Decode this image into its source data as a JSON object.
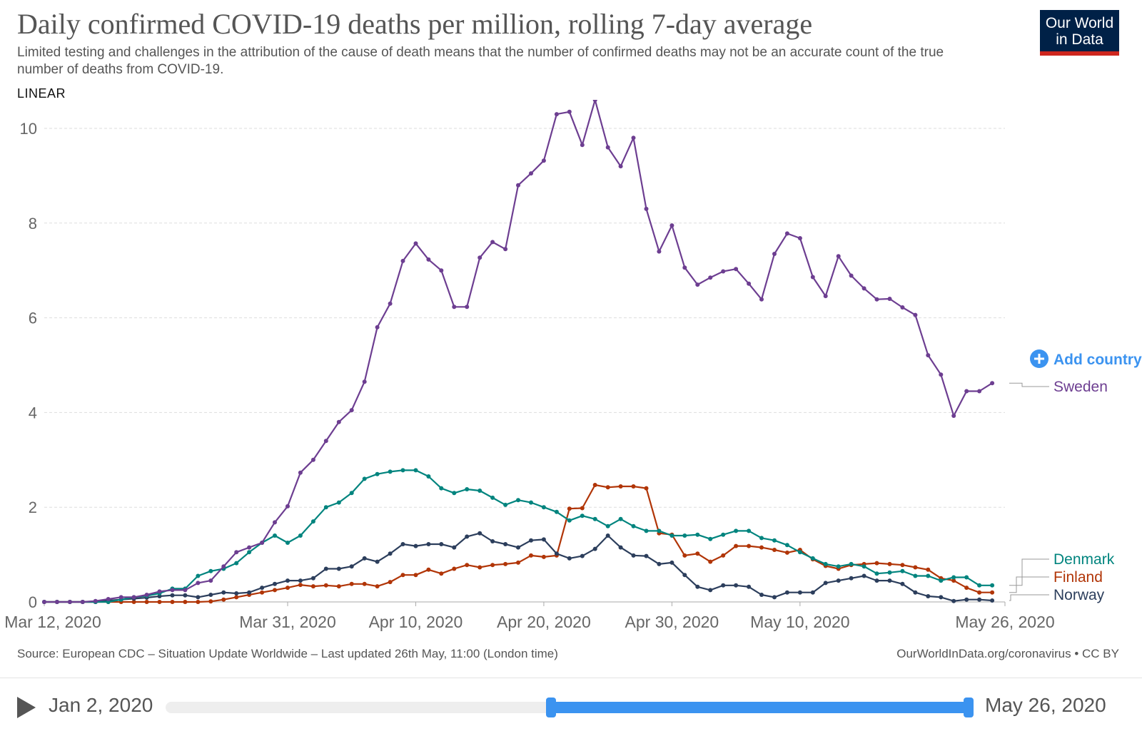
{
  "header": {
    "title": "Daily confirmed COVID-19 deaths per million, rolling 7-day average",
    "subtitle": "Limited testing and challenges in the attribution of the cause of death means that the number of confirmed deaths may not be an accurate count of the true number of deaths from COVID-19.",
    "scale_toggle": "LINEAR",
    "logo_line1": "Our World",
    "logo_line2": "in Data"
  },
  "add_country_label": "Add country",
  "footer": {
    "source": "Source: European CDC – Situation Update Worldwide – Last updated 26th May, 11:00 (London time)",
    "site": "OurWorldInData.org/coronavirus • CC BY"
  },
  "timeline": {
    "start_label": "Jan 2, 2020",
    "end_label": "May 26, 2020"
  },
  "colors": {
    "Sweden": "#6d3e91",
    "Denmark": "#00847e",
    "Finland": "#b13507",
    "Norway": "#2c3e5c",
    "grid": "#dddddd",
    "accent": "#3b93f0"
  },
  "chart_data": {
    "type": "line",
    "title": "Daily confirmed COVID-19 deaths per million, rolling 7-day average",
    "start_date": "2020-03-12",
    "x_ticks": [
      "Mar 12, 2020",
      "Mar 31, 2020",
      "Apr 10, 2020",
      "Apr 20, 2020",
      "Apr 30, 2020",
      "May 10, 2020",
      "May 26, 2020"
    ],
    "x_tick_days": [
      0,
      19,
      29,
      39,
      49,
      59,
      75
    ],
    "y_ticks": [
      0,
      2,
      4,
      6,
      8,
      10
    ],
    "ylim": [
      0,
      10.3
    ],
    "grid": true,
    "series": [
      {
        "name": "Sweden",
        "values": [
          0,
          0,
          0,
          0,
          0.02,
          0.06,
          0.1,
          0.1,
          0.15,
          0.22,
          0.25,
          0.25,
          0.4,
          0.45,
          0.75,
          1.05,
          1.15,
          1.25,
          1.68,
          2.02,
          2.73,
          3.0,
          3.4,
          3.8,
          4.05,
          4.65,
          5.8,
          6.3,
          7.2,
          7.57,
          7.23,
          7.0,
          6.23,
          6.23,
          7.27,
          7.6,
          7.45,
          8.8,
          9.05,
          9.32,
          10.3,
          10.35,
          9.65,
          10.6,
          9.6,
          9.2,
          9.8,
          8.3,
          7.4,
          7.95,
          7.06,
          6.7,
          6.85,
          6.98,
          7.03,
          6.72,
          6.39,
          7.35,
          7.78,
          7.68,
          6.86,
          6.46,
          7.3,
          6.89,
          6.62,
          6.39,
          6.4,
          6.22,
          6.06,
          5.21,
          4.8,
          3.93,
          4.45,
          4.45,
          4.62
        ]
      },
      {
        "name": "Denmark",
        "values": [
          0,
          0,
          0,
          0,
          0,
          0,
          0.05,
          0.1,
          0.13,
          0.18,
          0.28,
          0.28,
          0.55,
          0.65,
          0.7,
          0.82,
          1.05,
          1.25,
          1.4,
          1.25,
          1.4,
          1.7,
          2.0,
          2.1,
          2.3,
          2.6,
          2.7,
          2.75,
          2.78,
          2.78,
          2.65,
          2.4,
          2.3,
          2.38,
          2.35,
          2.2,
          2.05,
          2.15,
          2.1,
          2.0,
          1.9,
          1.72,
          1.82,
          1.75,
          1.6,
          1.75,
          1.6,
          1.5,
          1.5,
          1.4,
          1.4,
          1.42,
          1.33,
          1.42,
          1.5,
          1.5,
          1.35,
          1.3,
          1.2,
          1.05,
          0.92,
          0.8,
          0.75,
          0.8,
          0.75,
          0.6,
          0.62,
          0.65,
          0.55,
          0.55,
          0.45,
          0.52,
          0.52,
          0.35,
          0.35
        ]
      },
      {
        "name": "Finland",
        "values": [
          0,
          0,
          0,
          0,
          0,
          0,
          0,
          0,
          0,
          0,
          0,
          0,
          0,
          0.01,
          0.05,
          0.1,
          0.15,
          0.2,
          0.25,
          0.3,
          0.36,
          0.33,
          0.35,
          0.33,
          0.38,
          0.38,
          0.33,
          0.42,
          0.57,
          0.57,
          0.68,
          0.6,
          0.7,
          0.78,
          0.73,
          0.78,
          0.8,
          0.83,
          0.98,
          0.95,
          0.98,
          1.97,
          1.98,
          2.47,
          2.42,
          2.44,
          2.44,
          2.4,
          1.45,
          1.42,
          0.98,
          1.02,
          0.85,
          0.98,
          1.18,
          1.18,
          1.15,
          1.1,
          1.04,
          1.1,
          0.9,
          0.76,
          0.7,
          0.78,
          0.8,
          0.82,
          0.8,
          0.78,
          0.73,
          0.68,
          0.5,
          0.45,
          0.3,
          0.2,
          0.2
        ]
      },
      {
        "name": "Norway",
        "values": [
          0,
          0,
          0,
          0,
          0,
          0.03,
          0.05,
          0.07,
          0.09,
          0.12,
          0.14,
          0.14,
          0.1,
          0.15,
          0.2,
          0.18,
          0.2,
          0.3,
          0.38,
          0.45,
          0.45,
          0.5,
          0.7,
          0.7,
          0.75,
          0.92,
          0.85,
          1.02,
          1.22,
          1.18,
          1.22,
          1.22,
          1.15,
          1.38,
          1.45,
          1.28,
          1.22,
          1.15,
          1.3,
          1.32,
          1.02,
          0.92,
          0.97,
          1.12,
          1.4,
          1.15,
          0.98,
          0.97,
          0.8,
          0.83,
          0.57,
          0.32,
          0.25,
          0.35,
          0.35,
          0.32,
          0.15,
          0.1,
          0.2,
          0.2,
          0.2,
          0.4,
          0.45,
          0.5,
          0.55,
          0.45,
          0.45,
          0.38,
          0.2,
          0.12,
          0.1,
          0.02,
          0.05,
          0.05,
          0.03
        ]
      }
    ]
  }
}
